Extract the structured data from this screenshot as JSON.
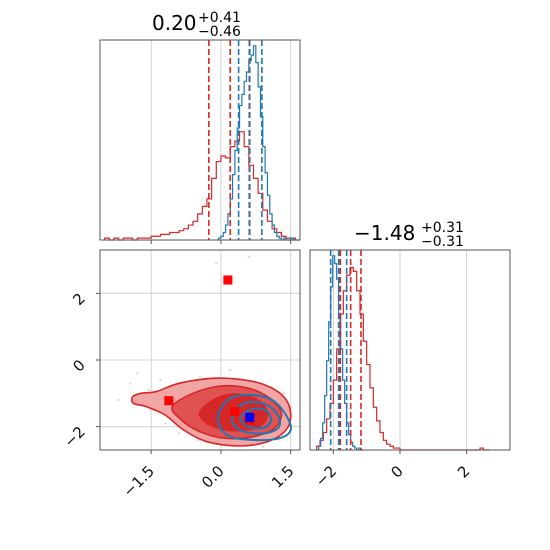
{
  "chart_data": {
    "type": "corner",
    "parameters": 2,
    "colors": {
      "red": "#d62728",
      "blue": "#1f77b4",
      "red_fill": "#f2a5a5",
      "red_fill_dark": "#e05252",
      "red_core": "#d62728"
    },
    "grid": true,
    "panels": [
      {
        "id": "hist1",
        "type": "histogram",
        "title": {
          "main": "0.20",
          "sup": "+0.41",
          "sub": "−0.46"
        },
        "xlim": [
          -2.6,
          1.7
        ],
        "xticks": [
          -1.5,
          0.0,
          1.5
        ],
        "quantiles": {
          "red": [
            -0.26,
            0.2,
            0.61
          ],
          "blue": [
            0.38,
            0.62,
            0.88
          ]
        },
        "series": [
          {
            "name": "",
            "color": "red",
            "bin_start": -2.5,
            "bin_width": 0.1,
            "heights": [
              1,
              0,
              1,
              0,
              1,
              1,
              0,
              1,
              1,
              1,
              2,
              2,
              3,
              3,
              4,
              4,
              5,
              6,
              8,
              10,
              14,
              18,
              22,
              33,
              42,
              45,
              44,
              50,
              53,
              58,
              50,
              40,
              33,
              25,
              16,
              10,
              6,
              4,
              2,
              1,
              1,
              0
            ]
          },
          {
            "name": "",
            "color": "blue",
            "bin_start": -0.1,
            "bin_width": 0.05,
            "heights": [
              0,
              1,
              2,
              4,
              8,
              14,
              22,
              35,
              48,
              60,
              72,
              78,
              85,
              90,
              96,
              99,
              104,
              95,
              82,
              66,
              50,
              36,
              24,
              14,
              8,
              4,
              2,
              1,
              0,
              1,
              0,
              0,
              1,
              0
            ]
          }
        ]
      },
      {
        "id": "hist2",
        "type": "histogram",
        "title": {
          "main": "−1.48",
          "sup": "+0.31",
          "sub": "−0.31"
        },
        "xlim": [
          -2.7,
          3.3
        ],
        "xticks": [
          -2,
          0,
          2
        ],
        "quantiles": {
          "red": [
            -1.79,
            -1.48,
            -1.17
          ],
          "blue": [
            -2.08,
            -1.84,
            -1.6
          ]
        },
        "series": [
          {
            "name": "",
            "color": "red",
            "bin_start": -2.5,
            "bin_width": 0.1,
            "heights": [
              2,
              5,
              9,
              16,
              24,
              36,
              52,
              70,
              82,
              90,
              94,
              92,
              82,
              70,
              56,
              44,
              32,
              22,
              15,
              9,
              5,
              3,
              2,
              1,
              1,
              0,
              0,
              0,
              0,
              0,
              0,
              0,
              0,
              0,
              0,
              0,
              0,
              0,
              0,
              0,
              0,
              0,
              0,
              0,
              0,
              0,
              0,
              0,
              0,
              1,
              0,
              0
            ]
          },
          {
            "name": "",
            "color": "blue",
            "bin_start": -2.5,
            "bin_width": 0.06,
            "heights": [
              0,
              2,
              6,
              14,
              28,
              46,
              66,
              84,
              100,
              96,
              88,
              70,
              52,
              36,
              24,
              14,
              8,
              4,
              2,
              1,
              0,
              1,
              0
            ]
          }
        ]
      },
      {
        "id": "joint",
        "type": "contour2d",
        "xlim": [
          -2.6,
          1.7
        ],
        "ylim": [
          -2.7,
          3.3
        ],
        "xticks": [
          -1.5,
          0.0,
          1.5
        ],
        "yticks": [
          -2,
          0,
          2
        ],
        "scatter": [
          [
            -1.95,
            -0.7
          ],
          [
            -1.7,
            -1.1
          ],
          [
            -1.55,
            -0.9
          ],
          [
            -1.45,
            -1.5
          ],
          [
            -1.3,
            -0.6
          ],
          [
            -1.2,
            -1.9
          ],
          [
            -1.05,
            -0.8
          ],
          [
            -0.9,
            -2.2
          ],
          [
            -0.85,
            -0.9
          ],
          [
            -0.7,
            -1.0
          ],
          [
            -0.6,
            -2.1
          ],
          [
            -0.45,
            -0.5
          ],
          [
            -0.35,
            -2.3
          ],
          [
            -0.2,
            -0.7
          ],
          [
            0.05,
            -2.5
          ],
          [
            0.3,
            -0.6
          ],
          [
            0.55,
            -2.4
          ],
          [
            0.8,
            -0.7
          ],
          [
            1.05,
            -0.8
          ],
          [
            1.2,
            -2.2
          ],
          [
            1.35,
            -1.0
          ],
          [
            1.45,
            -1.9
          ],
          [
            -1.1,
            -1.3
          ],
          [
            -0.95,
            -1.6
          ],
          [
            -0.1,
            2.9
          ],
          [
            0.6,
            3.1
          ],
          [
            0.9,
            -2.6
          ],
          [
            -0.5,
            -2.4
          ],
          [
            1.5,
            -1.4
          ],
          [
            -2.2,
            -1.2
          ],
          [
            -1.8,
            -0.4
          ],
          [
            0.2,
            -0.3
          ]
        ],
        "red_levels": [
          [
            [
              -1.9,
              -1.1
            ],
            [
              -1.72,
              -1.0
            ],
            [
              -1.4,
              -0.95
            ],
            [
              -0.9,
              -0.7
            ],
            [
              -0.2,
              -0.55
            ],
            [
              0.4,
              -0.58
            ],
            [
              0.95,
              -0.75
            ],
            [
              1.35,
              -1.1
            ],
            [
              1.5,
              -1.6
            ],
            [
              1.4,
              -2.1
            ],
            [
              1.0,
              -2.45
            ],
            [
              0.4,
              -2.58
            ],
            [
              -0.3,
              -2.45
            ],
            [
              -0.8,
              -2.1
            ],
            [
              -1.2,
              -1.65
            ],
            [
              -1.6,
              -1.4
            ],
            [
              -1.88,
              -1.3
            ]
          ],
          [
            [
              -1.05,
              -1.4
            ],
            [
              -0.6,
              -1.0
            ],
            [
              0.0,
              -0.78
            ],
            [
              0.6,
              -0.85
            ],
            [
              1.05,
              -1.15
            ],
            [
              1.3,
              -1.6
            ],
            [
              1.15,
              -2.05
            ],
            [
              0.7,
              -2.3
            ],
            [
              0.1,
              -2.35
            ],
            [
              -0.45,
              -2.15
            ],
            [
              -0.85,
              -1.8
            ]
          ],
          [
            [
              -0.45,
              -1.55
            ],
            [
              -0.1,
              -1.15
            ],
            [
              0.35,
              -1.02
            ],
            [
              0.8,
              -1.2
            ],
            [
              1.0,
              -1.6
            ],
            [
              0.85,
              -1.98
            ],
            [
              0.4,
              -2.12
            ],
            [
              -0.05,
              -2.05
            ],
            [
              -0.35,
              -1.85
            ]
          ]
        ],
        "blue_levels": [
          [
            [
              -0.05,
              -1.6
            ],
            [
              0.2,
              -1.15
            ],
            [
              0.65,
              -1.05
            ],
            [
              1.1,
              -1.2
            ],
            [
              1.4,
              -1.65
            ],
            [
              1.5,
              -2.1
            ],
            [
              1.25,
              -2.35
            ],
            [
              0.7,
              -2.4
            ],
            [
              0.2,
              -2.3
            ],
            [
              -0.02,
              -2.0
            ]
          ],
          [
            [
              0.25,
              -1.7
            ],
            [
              0.5,
              -1.3
            ],
            [
              0.9,
              -1.3
            ],
            [
              1.2,
              -1.6
            ],
            [
              1.25,
              -2.0
            ],
            [
              0.95,
              -2.2
            ],
            [
              0.5,
              -2.15
            ],
            [
              0.28,
              -1.95
            ]
          ],
          [
            [
              0.42,
              -1.75
            ],
            [
              0.65,
              -1.48
            ],
            [
              0.95,
              -1.5
            ],
            [
              1.08,
              -1.78
            ],
            [
              0.95,
              -2.02
            ],
            [
              0.62,
              -2.02
            ]
          ]
        ],
        "red_markers": [
          [
            0.15,
            2.4
          ],
          [
            -1.12,
            -1.22
          ],
          [
            0.3,
            -1.55
          ],
          [
            0.62,
            -1.8
          ]
        ],
        "blue_markers": [
          [
            0.62,
            -1.72
          ]
        ]
      }
    ]
  }
}
